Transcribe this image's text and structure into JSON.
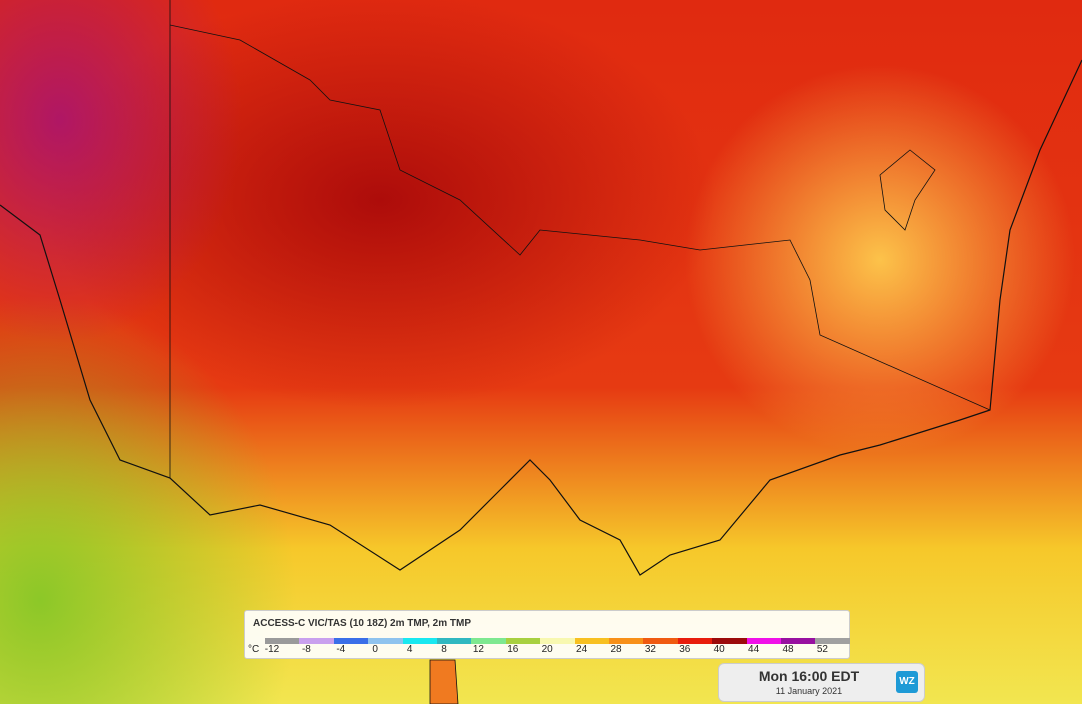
{
  "legend": {
    "title": "ACCESS-C VIC/TAS (10 18Z) 2m TMP, 2m TMP",
    "unit": "°C",
    "labels": [
      -12,
      -8,
      -4,
      0,
      4,
      8,
      12,
      16,
      20,
      24,
      28,
      32,
      36,
      40,
      44,
      48,
      52
    ],
    "colors": [
      "#9a9a9a",
      "#c9a0ee",
      "#3a6ee8",
      "#8fc3ee",
      "#19e8f0",
      "#30b8c0",
      "#7ee890",
      "#a8d040",
      "#f8f8b0",
      "#f8c020",
      "#f89018",
      "#f05a10",
      "#e81c0c",
      "#9c0a0a",
      "#f010e8",
      "#9810a0",
      "#a0a0a0"
    ]
  },
  "time_panel": {
    "time": "Mon 16:00 EDT",
    "date": "11 January 2021",
    "logo": "WZ"
  }
}
